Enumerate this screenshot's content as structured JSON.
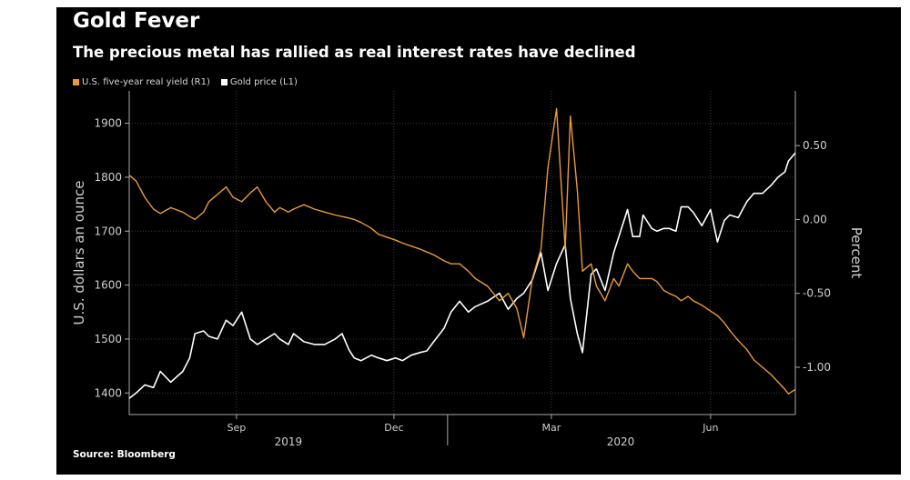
{
  "title": "Gold Fever",
  "subtitle": "The precious metal has rallied as real interest rates have declined",
  "source": "Source: Bloomberg",
  "colors": {
    "background": "#000000",
    "gold": "#ffffff",
    "yield": "#e89a3c",
    "grid": "#3a3a3a",
    "axis": "#aaaaaa"
  },
  "legend": [
    {
      "label": "U.S. five-year real yield (R1)",
      "color": "#e89a3c"
    },
    {
      "label": "Gold price (L1)",
      "color": "#ffffff"
    }
  ],
  "chart_data": {
    "type": "line",
    "left_axis": {
      "label": "U.S. dollars an ounce",
      "ticks": [
        1400,
        1500,
        1600,
        1700,
        1800,
        1900
      ],
      "range": [
        1360,
        1960
      ]
    },
    "right_axis": {
      "label": "Percent",
      "ticks": [
        -1.0,
        -0.5,
        0.0,
        0.5
      ],
      "tick_labels": [
        "-1.00",
        "-0.50",
        "0.00",
        "0.50"
      ],
      "range": [
        -1.32,
        0.87
      ]
    },
    "x_axis": {
      "range": [
        "2019-07-01",
        "2020-07-20"
      ],
      "month_ticks": [
        {
          "date": "2019-09-01",
          "label": "Sep"
        },
        {
          "date": "2019-12-01",
          "label": "Dec"
        },
        {
          "date": "2020-03-01",
          "label": "Mar"
        },
        {
          "date": "2020-06-01",
          "label": "Jun"
        }
      ],
      "year_labels": [
        {
          "date": "2019-10-01",
          "label": "2019"
        },
        {
          "date": "2020-04-10",
          "label": "2020"
        }
      ],
      "year_divider": "2020-01-01"
    },
    "series": [
      {
        "name": "Gold price (L1)",
        "axis": "left",
        "points": [
          [
            "2019-07-01",
            1390
          ],
          [
            "2019-07-05",
            1400
          ],
          [
            "2019-07-10",
            1415
          ],
          [
            "2019-07-15",
            1410
          ],
          [
            "2019-07-19",
            1440
          ],
          [
            "2019-07-25",
            1420
          ],
          [
            "2019-08-01",
            1440
          ],
          [
            "2019-08-05",
            1465
          ],
          [
            "2019-08-08",
            1510
          ],
          [
            "2019-08-13",
            1515
          ],
          [
            "2019-08-16",
            1505
          ],
          [
            "2019-08-21",
            1500
          ],
          [
            "2019-08-26",
            1535
          ],
          [
            "2019-08-30",
            1525
          ],
          [
            "2019-09-04",
            1550
          ],
          [
            "2019-09-09",
            1500
          ],
          [
            "2019-09-13",
            1490
          ],
          [
            "2019-09-18",
            1500
          ],
          [
            "2019-09-23",
            1510
          ],
          [
            "2019-09-26",
            1500
          ],
          [
            "2019-10-01",
            1490
          ],
          [
            "2019-10-04",
            1510
          ],
          [
            "2019-10-10",
            1495
          ],
          [
            "2019-10-16",
            1490
          ],
          [
            "2019-10-22",
            1490
          ],
          [
            "2019-10-28",
            1500
          ],
          [
            "2019-11-01",
            1510
          ],
          [
            "2019-11-05",
            1480
          ],
          [
            "2019-11-08",
            1465
          ],
          [
            "2019-11-12",
            1460
          ],
          [
            "2019-11-18",
            1470
          ],
          [
            "2019-11-22",
            1465
          ],
          [
            "2019-11-27",
            1460
          ],
          [
            "2019-12-02",
            1465
          ],
          [
            "2019-12-06",
            1460
          ],
          [
            "2019-12-11",
            1470
          ],
          [
            "2019-12-16",
            1475
          ],
          [
            "2019-12-20",
            1478
          ],
          [
            "2019-12-24",
            1495
          ],
          [
            "2019-12-30",
            1520
          ],
          [
            "2020-01-03",
            1550
          ],
          [
            "2020-01-08",
            1570
          ],
          [
            "2020-01-13",
            1550
          ],
          [
            "2020-01-17",
            1560
          ],
          [
            "2020-01-24",
            1570
          ],
          [
            "2020-01-31",
            1585
          ],
          [
            "2020-02-05",
            1555
          ],
          [
            "2020-02-10",
            1575
          ],
          [
            "2020-02-14",
            1585
          ],
          [
            "2020-02-19",
            1610
          ],
          [
            "2020-02-24",
            1660
          ],
          [
            "2020-02-28",
            1590
          ],
          [
            "2020-03-04",
            1640
          ],
          [
            "2020-03-09",
            1675
          ],
          [
            "2020-03-12",
            1575
          ],
          [
            "2020-03-16",
            1510
          ],
          [
            "2020-03-19",
            1475
          ],
          [
            "2020-03-24",
            1620
          ],
          [
            "2020-03-27",
            1630
          ],
          [
            "2020-04-01",
            1590
          ],
          [
            "2020-04-06",
            1660
          ],
          [
            "2020-04-09",
            1690
          ],
          [
            "2020-04-14",
            1740
          ],
          [
            "2020-04-17",
            1690
          ],
          [
            "2020-04-21",
            1690
          ],
          [
            "2020-04-23",
            1730
          ],
          [
            "2020-04-28",
            1705
          ],
          [
            "2020-05-01",
            1700
          ],
          [
            "2020-05-05",
            1705
          ],
          [
            "2020-05-08",
            1705
          ],
          [
            "2020-05-12",
            1700
          ],
          [
            "2020-05-15",
            1745
          ],
          [
            "2020-05-19",
            1745
          ],
          [
            "2020-05-22",
            1735
          ],
          [
            "2020-05-27",
            1710
          ],
          [
            "2020-06-01",
            1740
          ],
          [
            "2020-06-05",
            1680
          ],
          [
            "2020-06-09",
            1720
          ],
          [
            "2020-06-12",
            1730
          ],
          [
            "2020-06-17",
            1725
          ],
          [
            "2020-06-22",
            1755
          ],
          [
            "2020-06-26",
            1770
          ],
          [
            "2020-07-01",
            1770
          ],
          [
            "2020-07-06",
            1785
          ],
          [
            "2020-07-10",
            1800
          ],
          [
            "2020-07-14",
            1810
          ],
          [
            "2020-07-16",
            1830
          ],
          [
            "2020-07-20",
            1845
          ]
        ]
      },
      {
        "name": "U.S. five-year real yield (R1)",
        "axis": "right",
        "points": [
          [
            "2019-07-01",
            0.3
          ],
          [
            "2019-07-05",
            0.26
          ],
          [
            "2019-07-10",
            0.15
          ],
          [
            "2019-07-15",
            0.07
          ],
          [
            "2019-07-19",
            0.04
          ],
          [
            "2019-07-25",
            0.08
          ],
          [
            "2019-08-01",
            0.05
          ],
          [
            "2019-08-05",
            0.02
          ],
          [
            "2019-08-08",
            0.0
          ],
          [
            "2019-08-13",
            0.05
          ],
          [
            "2019-08-16",
            0.12
          ],
          [
            "2019-08-21",
            0.17
          ],
          [
            "2019-08-26",
            0.22
          ],
          [
            "2019-08-30",
            0.15
          ],
          [
            "2019-09-04",
            0.12
          ],
          [
            "2019-09-09",
            0.18
          ],
          [
            "2019-09-13",
            0.22
          ],
          [
            "2019-09-18",
            0.12
          ],
          [
            "2019-09-23",
            0.05
          ],
          [
            "2019-09-26",
            0.08
          ],
          [
            "2019-10-01",
            0.05
          ],
          [
            "2019-10-04",
            0.07
          ],
          [
            "2019-10-10",
            0.1
          ],
          [
            "2019-10-16",
            0.07
          ],
          [
            "2019-10-22",
            0.05
          ],
          [
            "2019-10-28",
            0.03
          ],
          [
            "2019-11-01",
            0.02
          ],
          [
            "2019-11-05",
            0.01
          ],
          [
            "2019-11-08",
            0.0
          ],
          [
            "2019-11-12",
            -0.02
          ],
          [
            "2019-11-18",
            -0.06
          ],
          [
            "2019-11-22",
            -0.1
          ],
          [
            "2019-11-27",
            -0.12
          ],
          [
            "2019-12-02",
            -0.14
          ],
          [
            "2019-12-06",
            -0.16
          ],
          [
            "2019-12-11",
            -0.18
          ],
          [
            "2019-12-16",
            -0.2
          ],
          [
            "2019-12-20",
            -0.22
          ],
          [
            "2019-12-24",
            -0.24
          ],
          [
            "2019-12-30",
            -0.28
          ],
          [
            "2020-01-03",
            -0.3
          ],
          [
            "2020-01-08",
            -0.3
          ],
          [
            "2020-01-13",
            -0.35
          ],
          [
            "2020-01-17",
            -0.4
          ],
          [
            "2020-01-24",
            -0.45
          ],
          [
            "2020-01-31",
            -0.55
          ],
          [
            "2020-02-05",
            -0.5
          ],
          [
            "2020-02-10",
            -0.6
          ],
          [
            "2020-02-14",
            -0.8
          ],
          [
            "2020-02-19",
            -0.4
          ],
          [
            "2020-02-24",
            -0.2
          ],
          [
            "2020-02-28",
            0.35
          ],
          [
            "2020-03-04",
            0.75
          ],
          [
            "2020-03-09",
            -0.2
          ],
          [
            "2020-03-12",
            0.7
          ],
          [
            "2020-03-16",
            0.2
          ],
          [
            "2020-03-19",
            -0.35
          ],
          [
            "2020-03-24",
            -0.3
          ],
          [
            "2020-03-27",
            -0.45
          ],
          [
            "2020-04-01",
            -0.55
          ],
          [
            "2020-04-06",
            -0.4
          ],
          [
            "2020-04-09",
            -0.45
          ],
          [
            "2020-04-14",
            -0.3
          ],
          [
            "2020-04-17",
            -0.35
          ],
          [
            "2020-04-21",
            -0.4
          ],
          [
            "2020-04-23",
            -0.4
          ],
          [
            "2020-04-28",
            -0.4
          ],
          [
            "2020-05-01",
            -0.42
          ],
          [
            "2020-05-05",
            -0.48
          ],
          [
            "2020-05-08",
            -0.5
          ],
          [
            "2020-05-12",
            -0.52
          ],
          [
            "2020-05-15",
            -0.55
          ],
          [
            "2020-05-19",
            -0.52
          ],
          [
            "2020-05-22",
            -0.55
          ],
          [
            "2020-05-27",
            -0.58
          ],
          [
            "2020-06-01",
            -0.62
          ],
          [
            "2020-06-05",
            -0.65
          ],
          [
            "2020-06-09",
            -0.7
          ],
          [
            "2020-06-12",
            -0.75
          ],
          [
            "2020-06-17",
            -0.82
          ],
          [
            "2020-06-22",
            -0.88
          ],
          [
            "2020-06-26",
            -0.95
          ],
          [
            "2020-07-01",
            -1.0
          ],
          [
            "2020-07-06",
            -1.05
          ],
          [
            "2020-07-10",
            -1.1
          ],
          [
            "2020-07-14",
            -1.15
          ],
          [
            "2020-07-16",
            -1.18
          ],
          [
            "2020-07-20",
            -1.15
          ]
        ]
      }
    ]
  }
}
